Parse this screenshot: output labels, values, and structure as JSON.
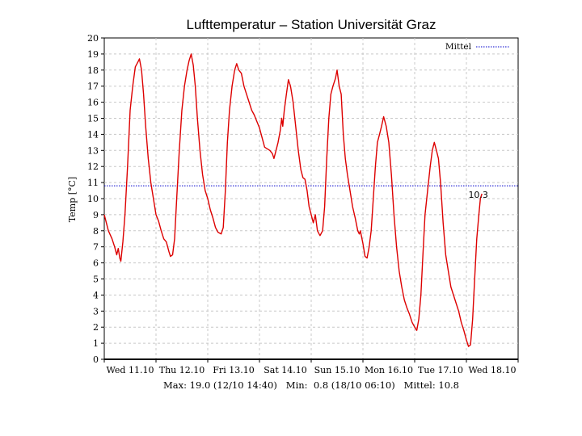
{
  "chart_data": {
    "type": "line",
    "title": "Lufttemperatur – Station Universität Graz",
    "ylabel": "Temp [°C]",
    "xlabel": "",
    "ylim": [
      0,
      20
    ],
    "yticks": [
      0,
      1,
      2,
      3,
      4,
      5,
      6,
      7,
      8,
      9,
      10,
      11,
      12,
      13,
      14,
      15,
      16,
      17,
      18,
      19,
      20
    ],
    "xlim": [
      0,
      8
    ],
    "xunit": "days since Wed 11.10 00:00",
    "xticks": [
      {
        "x": 0.5,
        "label": "Wed 11.10"
      },
      {
        "x": 1.5,
        "label": "Thu 12.10"
      },
      {
        "x": 2.5,
        "label": "Fri 13.10"
      },
      {
        "x": 3.5,
        "label": "Sat 14.10"
      },
      {
        "x": 4.5,
        "label": "Sun 15.10"
      },
      {
        "x": 5.5,
        "label": "Mon 16.10"
      },
      {
        "x": 6.5,
        "label": "Tue 17.10"
      },
      {
        "x": 7.5,
        "label": "Wed 18.10"
      }
    ],
    "grid": true,
    "legend": {
      "placement": "top-right",
      "entries": [
        "Mittel"
      ]
    },
    "series": [
      {
        "name": "",
        "color": "#dd0000",
        "points": [
          [
            0.0,
            9.0
          ],
          [
            0.08,
            8.0
          ],
          [
            0.15,
            7.5
          ],
          [
            0.2,
            7.0
          ],
          [
            0.24,
            6.5
          ],
          [
            0.27,
            6.9
          ],
          [
            0.3,
            6.3
          ],
          [
            0.32,
            6.1
          ],
          [
            0.36,
            7.3
          ],
          [
            0.4,
            9.0
          ],
          [
            0.45,
            12.0
          ],
          [
            0.5,
            15.5
          ],
          [
            0.55,
            17.0
          ],
          [
            0.6,
            18.2
          ],
          [
            0.65,
            18.5
          ],
          [
            0.68,
            18.7
          ],
          [
            0.72,
            18.0
          ],
          [
            0.76,
            16.5
          ],
          [
            0.8,
            14.5
          ],
          [
            0.85,
            12.5
          ],
          [
            0.9,
            11.0
          ],
          [
            0.95,
            10.0
          ],
          [
            1.0,
            9.0
          ],
          [
            1.05,
            8.6
          ],
          [
            1.1,
            8.0
          ],
          [
            1.15,
            7.5
          ],
          [
            1.2,
            7.3
          ],
          [
            1.25,
            6.7
          ],
          [
            1.28,
            6.4
          ],
          [
            1.32,
            6.5
          ],
          [
            1.36,
            7.5
          ],
          [
            1.4,
            10.0
          ],
          [
            1.45,
            13.0
          ],
          [
            1.5,
            15.5
          ],
          [
            1.55,
            17.0
          ],
          [
            1.6,
            18.0
          ],
          [
            1.64,
            18.6
          ],
          [
            1.68,
            19.0
          ],
          [
            1.72,
            18.3
          ],
          [
            1.76,
            17.0
          ],
          [
            1.8,
            15.0
          ],
          [
            1.85,
            13.0
          ],
          [
            1.9,
            11.5
          ],
          [
            1.95,
            10.5
          ],
          [
            2.0,
            10.0
          ],
          [
            2.05,
            9.3
          ],
          [
            2.1,
            8.8
          ],
          [
            2.15,
            8.2
          ],
          [
            2.2,
            7.9
          ],
          [
            2.26,
            7.8
          ],
          [
            2.3,
            8.2
          ],
          [
            2.34,
            10.5
          ],
          [
            2.38,
            13.5
          ],
          [
            2.42,
            15.5
          ],
          [
            2.47,
            17.0
          ],
          [
            2.52,
            18.0
          ],
          [
            2.56,
            18.4
          ],
          [
            2.6,
            18.0
          ],
          [
            2.65,
            17.8
          ],
          [
            2.7,
            17.0
          ],
          [
            2.75,
            16.5
          ],
          [
            2.8,
            16.0
          ],
          [
            2.85,
            15.5
          ],
          [
            2.9,
            15.2
          ],
          [
            2.95,
            14.8
          ],
          [
            3.0,
            14.4
          ],
          [
            3.05,
            13.8
          ],
          [
            3.1,
            13.2
          ],
          [
            3.15,
            13.1
          ],
          [
            3.2,
            13.0
          ],
          [
            3.25,
            12.8
          ],
          [
            3.28,
            12.5
          ],
          [
            3.32,
            13.0
          ],
          [
            3.36,
            13.5
          ],
          [
            3.4,
            14.2
          ],
          [
            3.43,
            15.0
          ],
          [
            3.45,
            14.5
          ],
          [
            3.48,
            15.5
          ],
          [
            3.52,
            16.5
          ],
          [
            3.56,
            17.4
          ],
          [
            3.6,
            17.0
          ],
          [
            3.65,
            16.0
          ],
          [
            3.7,
            14.5
          ],
          [
            3.75,
            13.0
          ],
          [
            3.8,
            11.8
          ],
          [
            3.84,
            11.3
          ],
          [
            3.88,
            11.2
          ],
          [
            3.92,
            10.5
          ],
          [
            3.96,
            9.5
          ],
          [
            4.0,
            9.0
          ],
          [
            4.04,
            8.5
          ],
          [
            4.08,
            9.0
          ],
          [
            4.12,
            8.0
          ],
          [
            4.17,
            7.7
          ],
          [
            4.22,
            8.0
          ],
          [
            4.26,
            9.5
          ],
          [
            4.3,
            12.5
          ],
          [
            4.34,
            15.0
          ],
          [
            4.38,
            16.5
          ],
          [
            4.42,
            17.0
          ],
          [
            4.47,
            17.5
          ],
          [
            4.5,
            18.0
          ],
          [
            4.54,
            17.0
          ],
          [
            4.58,
            16.5
          ],
          [
            4.62,
            14.0
          ],
          [
            4.66,
            12.5
          ],
          [
            4.7,
            11.5
          ],
          [
            4.75,
            10.5
          ],
          [
            4.8,
            9.5
          ],
          [
            4.85,
            8.8
          ],
          [
            4.9,
            8.0
          ],
          [
            4.93,
            7.8
          ],
          [
            4.95,
            8.0
          ],
          [
            5.0,
            7.2
          ],
          [
            5.04,
            6.4
          ],
          [
            5.08,
            6.3
          ],
          [
            5.12,
            7.0
          ],
          [
            5.16,
            8.0
          ],
          [
            5.2,
            10.0
          ],
          [
            5.24,
            12.0
          ],
          [
            5.28,
            13.5
          ],
          [
            5.32,
            14.0
          ],
          [
            5.36,
            14.5
          ],
          [
            5.4,
            15.1
          ],
          [
            5.45,
            14.5
          ],
          [
            5.5,
            13.5
          ],
          [
            5.55,
            11.5
          ],
          [
            5.6,
            9.0
          ],
          [
            5.65,
            7.0
          ],
          [
            5.7,
            5.5
          ],
          [
            5.75,
            4.5
          ],
          [
            5.8,
            3.7
          ],
          [
            5.85,
            3.2
          ],
          [
            5.9,
            2.8
          ],
          [
            5.95,
            2.3
          ],
          [
            6.0,
            2.0
          ],
          [
            6.04,
            1.8
          ],
          [
            6.08,
            2.5
          ],
          [
            6.12,
            4.0
          ],
          [
            6.16,
            6.5
          ],
          [
            6.2,
            9.0
          ],
          [
            6.25,
            10.5
          ],
          [
            6.3,
            12.0
          ],
          [
            6.34,
            13.0
          ],
          [
            6.38,
            13.5
          ],
          [
            6.42,
            13.0
          ],
          [
            6.46,
            12.5
          ],
          [
            6.5,
            11.0
          ],
          [
            6.55,
            8.5
          ],
          [
            6.6,
            6.5
          ],
          [
            6.65,
            5.5
          ],
          [
            6.7,
            4.5
          ],
          [
            6.75,
            4.0
          ],
          [
            6.8,
            3.5
          ],
          [
            6.85,
            3.0
          ],
          [
            6.9,
            2.3
          ],
          [
            6.95,
            1.8
          ],
          [
            7.0,
            1.2
          ],
          [
            7.04,
            0.8
          ],
          [
            7.08,
            0.9
          ],
          [
            7.12,
            2.5
          ],
          [
            7.16,
            5.0
          ],
          [
            7.2,
            7.5
          ],
          [
            7.24,
            9.0
          ],
          [
            7.27,
            10.0
          ],
          [
            7.3,
            10.3
          ]
        ]
      }
    ],
    "reference_lines": [
      {
        "name": "Mittel",
        "y": 10.8,
        "color": "#0000cc",
        "style": "dotted"
      }
    ],
    "annotations": [
      {
        "text": "10.3",
        "x": 7.21,
        "y": 10.3
      }
    ],
    "stats": "Max: 19.0 (12/10 14:40)   Min:  0.8 (18/10 06:10)   Mittel: 10.8"
  }
}
